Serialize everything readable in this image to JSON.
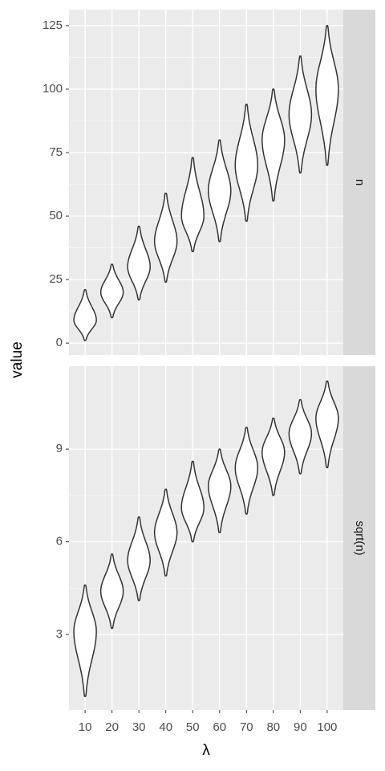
{
  "chart_data": [
    {
      "type": "violin",
      "strip": "n",
      "ylabel": "value",
      "categories": [
        "10",
        "20",
        "30",
        "40",
        "50",
        "60",
        "70",
        "80",
        "90",
        "100"
      ],
      "min": [
        1,
        10,
        17,
        24,
        36,
        40,
        48,
        56,
        67,
        70
      ],
      "max": [
        21,
        31,
        46,
        59,
        73,
        80,
        94,
        100,
        113,
        125
      ],
      "mode": [
        9,
        20,
        30,
        40,
        50,
        60,
        70,
        80,
        90,
        100
      ],
      "ylim": [
        -4.7,
        131.3
      ],
      "yticks": [
        0,
        25,
        50,
        75,
        100,
        125
      ],
      "grid": true
    },
    {
      "type": "violin",
      "strip": "sqrt(n)",
      "xlabel": "λ",
      "categories": [
        "10",
        "20",
        "30",
        "40",
        "50",
        "60",
        "70",
        "80",
        "90",
        "100"
      ],
      "min": [
        1,
        3.2,
        4.1,
        4.9,
        6,
        6.3,
        6.9,
        7.5,
        8.2,
        8.4
      ],
      "max": [
        4.6,
        5.6,
        6.8,
        7.7,
        8.6,
        9,
        9.7,
        10,
        10.6,
        11.2
      ],
      "mode": [
        3.1,
        4.4,
        5.4,
        6.3,
        7.1,
        7.8,
        8.4,
        8.9,
        9.5,
        10
      ],
      "ylim": [
        0.56,
        11.68
      ],
      "yticks": [
        3,
        6,
        9
      ],
      "grid": true
    }
  ]
}
